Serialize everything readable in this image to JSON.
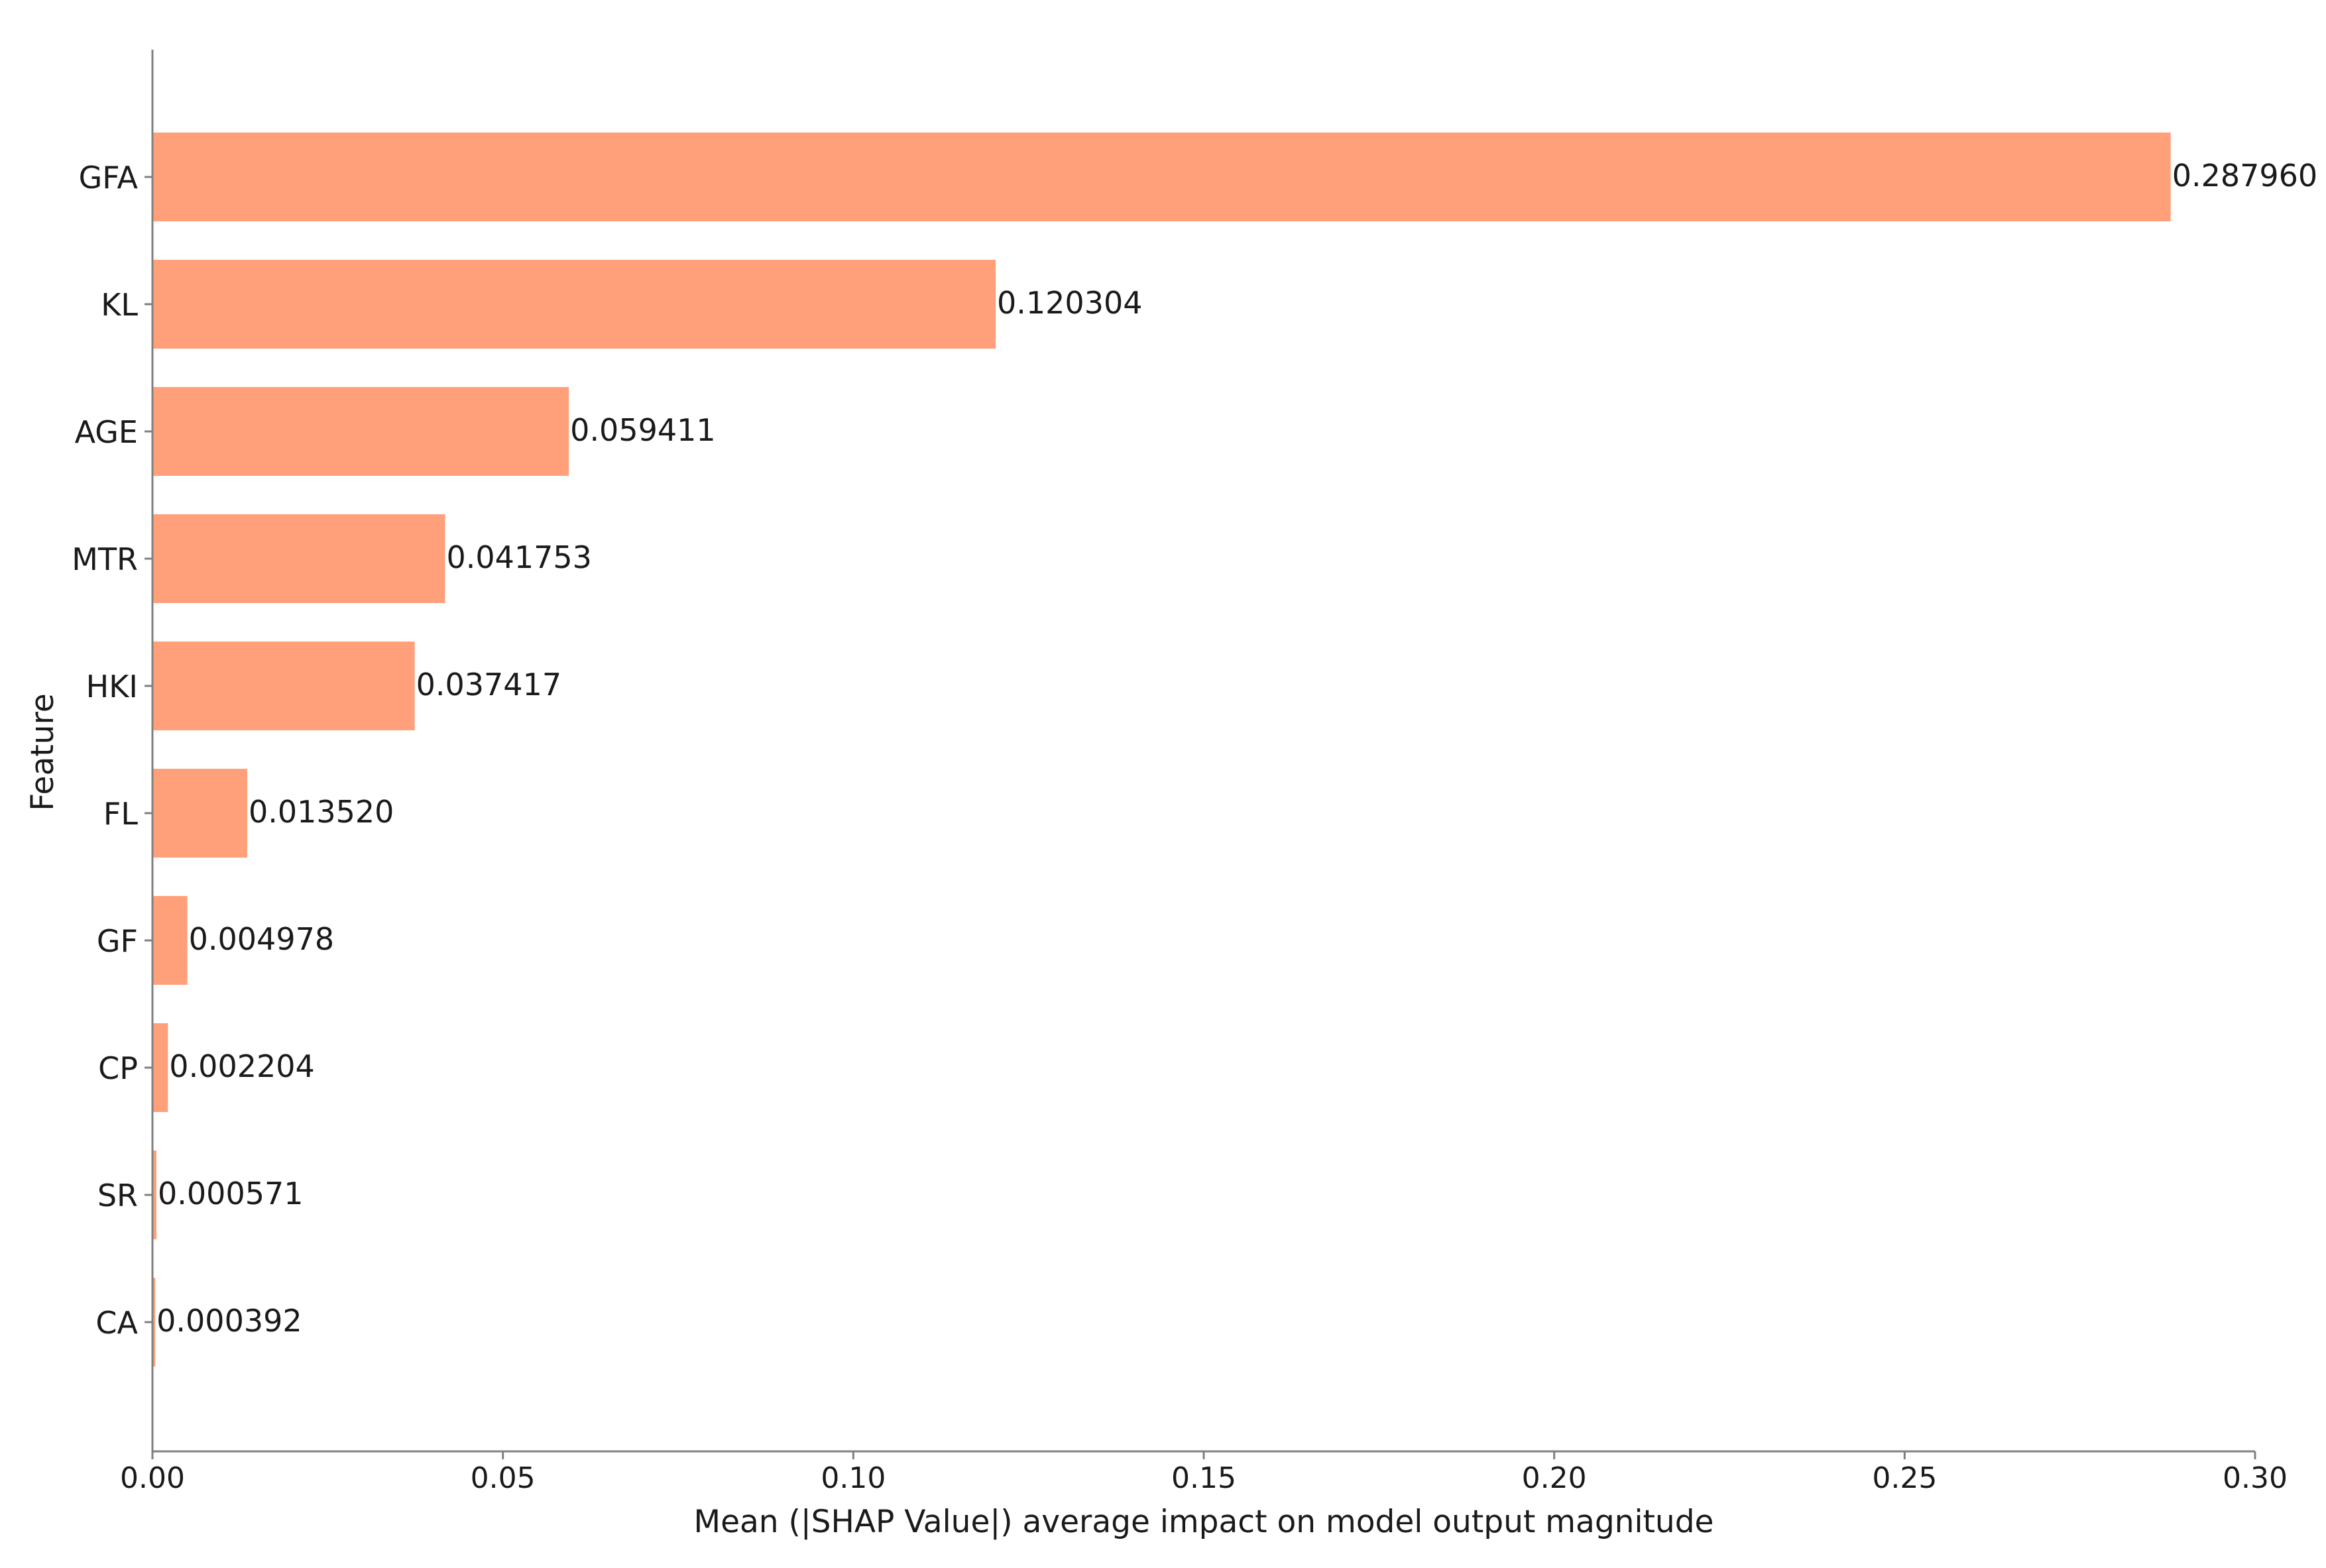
{
  "chart_data": {
    "type": "bar",
    "orientation": "horizontal",
    "xlabel": "Mean (|SHAP Value|) average impact on model output magnitude",
    "ylabel": "Feature",
    "xlim": [
      0,
      0.3
    ],
    "xticks": [
      "0.00",
      "0.05",
      "0.10",
      "0.15",
      "0.20",
      "0.25",
      "0.30"
    ],
    "grid": false,
    "bar_color": "#FFA07A",
    "categories": [
      "GFA",
      "KL",
      "AGE",
      "MTR",
      "HKI",
      "FL",
      "GF",
      "CP",
      "SR",
      "CA"
    ],
    "values": [
      0.28796,
      0.120304,
      0.059411,
      0.041753,
      0.037417,
      0.01352,
      0.004978,
      0.002204,
      0.000571,
      0.000392
    ],
    "value_labels": [
      "0.287960",
      "0.120304",
      "0.059411",
      "0.041753",
      "0.037417",
      "0.013520",
      "0.004978",
      "0.002204",
      "0.000571",
      "0.000392"
    ]
  }
}
